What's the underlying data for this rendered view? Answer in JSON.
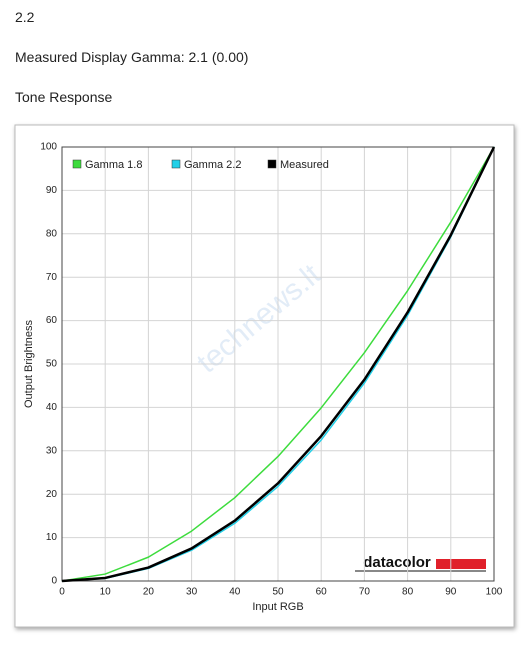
{
  "header": {
    "title": "2.2",
    "subtitle": "Measured Display Gamma: 2.1 (0.00)",
    "section": "Tone Response"
  },
  "chart_data": {
    "type": "line",
    "x_label": "Input RGB",
    "y_label": "Output Brightness",
    "x": [
      0,
      10,
      20,
      30,
      40,
      50,
      60,
      70,
      80,
      90,
      100
    ],
    "series": [
      {
        "name": "Gamma 1.8",
        "color": "#3ddc3d",
        "values": [
          0,
          1.6,
          5.5,
          11.5,
          19.2,
          28.7,
          39.9,
          52.6,
          66.9,
          82.7,
          100
        ]
      },
      {
        "name": "Gamma 2.2",
        "color": "#22d0e8",
        "values": [
          0,
          0.6,
          2.9,
          7.1,
          13.3,
          21.8,
          32.5,
          45.6,
          61.2,
          79.3,
          100
        ]
      },
      {
        "name": "Measured",
        "color": "#000000",
        "values": [
          0,
          0.7,
          3.1,
          7.5,
          13.9,
          22.5,
          33.4,
          46.4,
          61.9,
          79.7,
          100
        ]
      }
    ],
    "xlim": [
      0,
      100
    ],
    "ylim": [
      0,
      100
    ],
    "xticks": [
      0,
      10,
      20,
      30,
      40,
      50,
      60,
      70,
      80,
      90,
      100
    ],
    "yticks": [
      0,
      10,
      20,
      30,
      40,
      50,
      60,
      70,
      80,
      90,
      100
    ],
    "grid": true,
    "legend": "top-left",
    "logo": "datacolor",
    "watermark": "technews.lt"
  }
}
